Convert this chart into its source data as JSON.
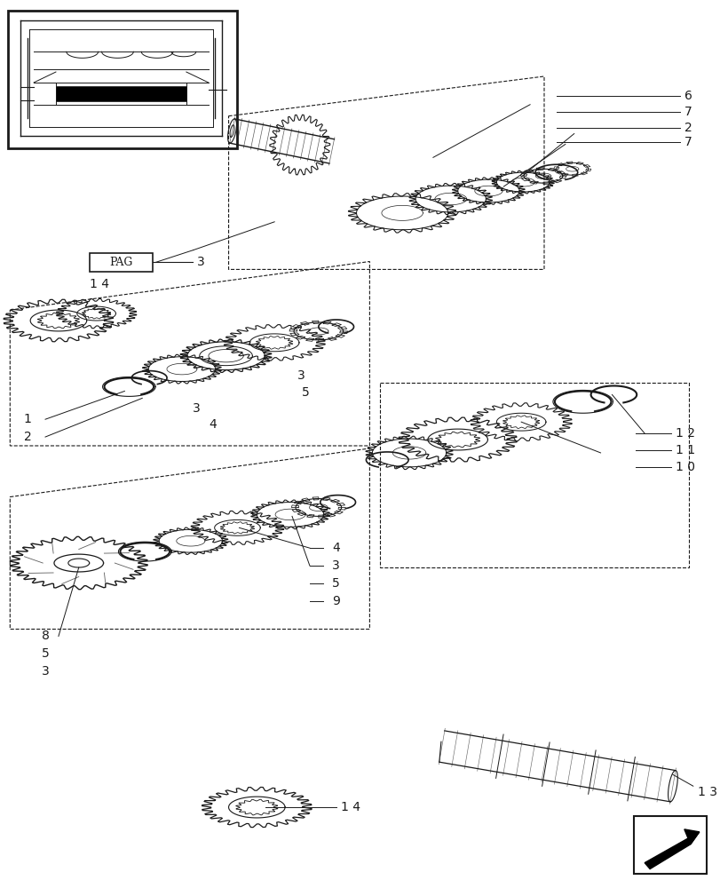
{
  "bg_color": "#ffffff",
  "line_color": "#1a1a1a",
  "fig_width": 8.12,
  "fig_height": 10.0,
  "dpi": 100,
  "labels": {
    "top_right": [
      "6",
      "7",
      "2",
      "7"
    ],
    "middle_right": [
      "1 2",
      "1 1",
      "1 0"
    ],
    "bottom_14": "1 4",
    "bottom_13": "1 3",
    "pag_label": "PAG",
    "pag_num": "3",
    "pag_14": "1 4",
    "label_1": "1",
    "label_2": "2",
    "label_3": "3",
    "label_4": "4",
    "label_5": "5",
    "label_8": "8",
    "label_9": "9"
  }
}
